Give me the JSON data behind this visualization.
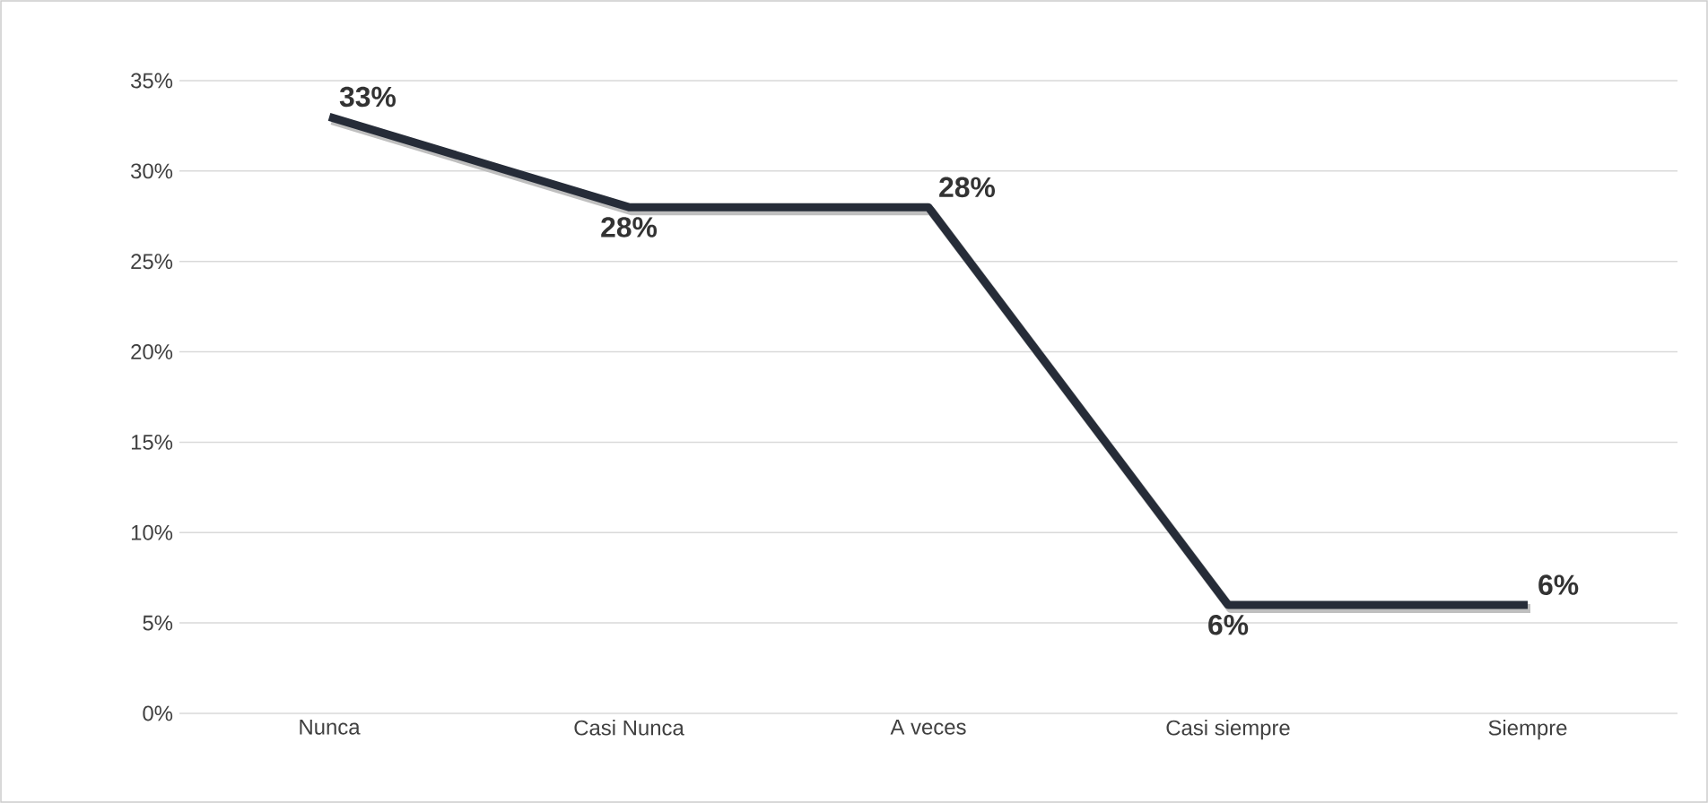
{
  "chart_data": {
    "type": "line",
    "categories": [
      "Nunca",
      "Casi Nunca",
      "A veces",
      "Casi siempre",
      "Siempre"
    ],
    "values": [
      33,
      28,
      28,
      6,
      6
    ],
    "value_labels": [
      "33%",
      "28%",
      "28%",
      "6%",
      "6%"
    ],
    "color": "#262c38",
    "ylim": [
      0,
      35
    ],
    "yticks": [
      {
        "value": 0,
        "label": "0%"
      },
      {
        "value": 5,
        "label": "5%"
      },
      {
        "value": 10,
        "label": "10%"
      },
      {
        "value": 15,
        "label": "15%"
      },
      {
        "value": 20,
        "label": "20%"
      },
      {
        "value": 25,
        "label": "25%"
      },
      {
        "value": 30,
        "label": "30%"
      },
      {
        "value": 35,
        "label": "35%"
      }
    ],
    "grid": "y",
    "marker": "none",
    "line_style": "solid"
  }
}
